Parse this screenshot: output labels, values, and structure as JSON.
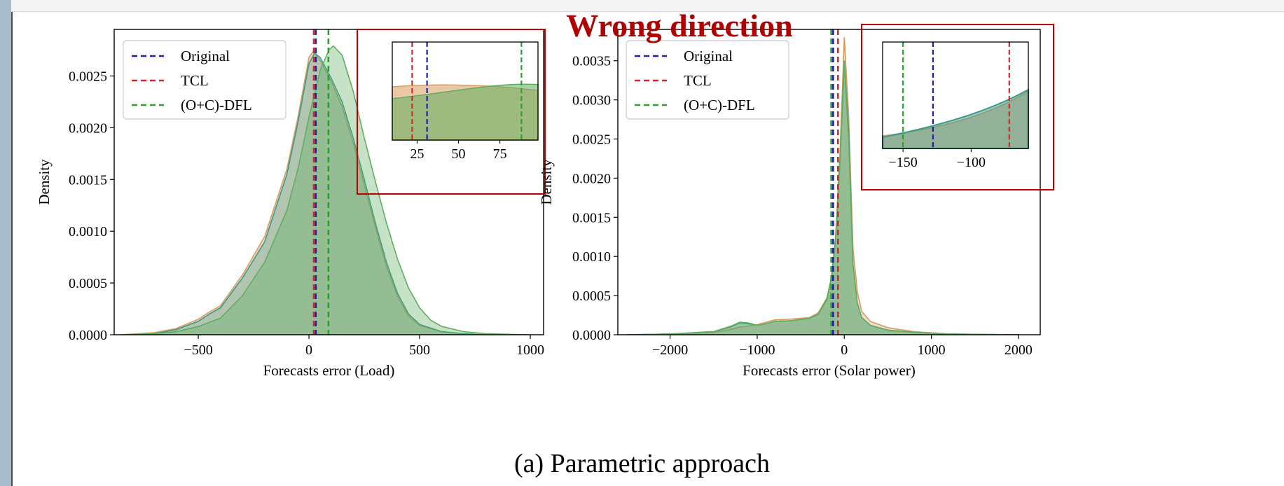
{
  "caption": "(a) Parametric approach",
  "annotation": {
    "text": "Wrong direction",
    "color": "#b00000"
  },
  "colors": {
    "original": "#1f1fa8",
    "tcl": "#d62728",
    "dfl": "#2ca02c",
    "fill_orange": "#d89b5c",
    "fill_green": "#5fae5f",
    "fill_teal": "#3a9a8a",
    "box": "#c00000"
  },
  "chart_data": [
    {
      "type": "area",
      "xlabel": "Forecasts error (Load)",
      "ylabel": "Density",
      "xlim": [
        -880,
        1060
      ],
      "ylim": [
        0,
        0.00295
      ],
      "xticks": [
        -500,
        0,
        500,
        1000
      ],
      "yticks": [
        0.0,
        0.0005,
        0.001,
        0.0015,
        0.002,
        0.0025
      ],
      "ytick_labels": [
        "0.0000",
        "0.0005",
        "0.0010",
        "0.0015",
        "0.0020",
        "0.0025"
      ],
      "xtick_labels": [
        "−500",
        "0",
        "500",
        "1000"
      ],
      "legend": {
        "placement": "top-left",
        "entries": [
          "Original",
          "TCL",
          "(O+C)-DFL"
        ]
      },
      "vlines": {
        "Original": 31,
        "TCL": 22,
        "(O+C)-DFL": 88
      },
      "series": [
        {
          "name": "Original",
          "color_key": "fill_teal",
          "x": [
            -850,
            -700,
            -600,
            -500,
            -450,
            -400,
            -300,
            -200,
            -100,
            -50,
            0,
            25,
            50,
            100,
            150,
            200,
            250,
            300,
            350,
            400,
            450,
            500,
            600,
            700,
            800
          ],
          "y": [
            0,
            1e-05,
            5e-05,
            0.00013,
            0.0002,
            0.00026,
            0.00055,
            0.0009,
            0.00155,
            0.00205,
            0.00262,
            0.00272,
            0.00268,
            0.00248,
            0.00225,
            0.0019,
            0.0015,
            0.00108,
            0.0007,
            0.0004,
            0.0002,
            0.0001,
            3e-05,
            1e-05,
            0
          ]
        },
        {
          "name": "TCL",
          "color_key": "fill_orange",
          "x": [
            -850,
            -700,
            -600,
            -500,
            -450,
            -400,
            -300,
            -200,
            -100,
            -50,
            0,
            20,
            50,
            100,
            150,
            200,
            250,
            300,
            350,
            400,
            450,
            500,
            600,
            700,
            800
          ],
          "y": [
            0,
            2e-05,
            6e-05,
            0.00015,
            0.00022,
            0.00028,
            0.00058,
            0.00095,
            0.0016,
            0.0021,
            0.00268,
            0.00274,
            0.00265,
            0.00245,
            0.0022,
            0.00185,
            0.00145,
            0.00104,
            0.00066,
            0.00037,
            0.00018,
            9e-05,
            3e-05,
            1e-05,
            0
          ]
        },
        {
          "name": "(O+C)-DFL",
          "color_key": "fill_green",
          "x": [
            -850,
            -700,
            -600,
            -500,
            -450,
            -400,
            -300,
            -200,
            -100,
            -50,
            0,
            50,
            90,
            110,
            150,
            200,
            250,
            300,
            350,
            400,
            450,
            500,
            550,
            600,
            700,
            800,
            1000
          ],
          "y": [
            0,
            1e-05,
            3e-05,
            8e-05,
            0.00012,
            0.00016,
            0.00038,
            0.0007,
            0.0012,
            0.0016,
            0.0021,
            0.00255,
            0.00275,
            0.00279,
            0.0027,
            0.00235,
            0.0019,
            0.00148,
            0.00108,
            0.00073,
            0.00045,
            0.00026,
            0.00014,
            8e-05,
            3e-05,
            1e-05,
            0
          ]
        }
      ],
      "inset": {
        "xlim": [
          10,
          98
        ],
        "xticks": [
          25,
          50,
          75
        ],
        "xtick_labels": [
          "25",
          "50",
          "75"
        ],
        "band_y_top": 0.45,
        "band_y_top_green": 0.52
      }
    },
    {
      "type": "area",
      "xlabel": "Forecasts error (Solar power)",
      "ylabel": "Density",
      "xlim": [
        -2600,
        2250
      ],
      "ylim": [
        0,
        0.0039
      ],
      "xticks": [
        -2000,
        -1000,
        0,
        1000,
        2000
      ],
      "yticks": [
        0.0,
        0.0005,
        0.001,
        0.0015,
        0.002,
        0.0025,
        0.003,
        0.0035
      ],
      "ytick_labels": [
        "0.0000",
        "0.0005",
        "0.0010",
        "0.0015",
        "0.0020",
        "0.0025",
        "0.0030",
        "0.0035"
      ],
      "xtick_labels": [
        "−2000",
        "−1000",
        "0",
        "1000",
        "2000"
      ],
      "legend": {
        "placement": "top-left",
        "entries": [
          "Original",
          "TCL",
          "(O+C)-DFL"
        ]
      },
      "vlines": {
        "Original": -128,
        "TCL": -72,
        "(O+C)-DFL": -150
      },
      "series": [
        {
          "name": "Original",
          "color_key": "fill_teal",
          "x": [
            -2500,
            -2000,
            -1500,
            -1300,
            -1200,
            -1100,
            -1000,
            -900,
            -800,
            -600,
            -400,
            -300,
            -200,
            -150,
            -100,
            -50,
            0,
            50,
            100,
            150,
            200,
            300,
            500,
            800,
            1200,
            2000
          ],
          "y": [
            0,
            1e-05,
            4e-05,
            0.0001,
            0.00015,
            0.00014,
            0.00012,
            0.00014,
            0.00017,
            0.00018,
            0.00021,
            0.00026,
            0.00045,
            0.0007,
            0.0012,
            0.0022,
            0.0035,
            0.0026,
            0.0009,
            0.0004,
            0.00022,
            0.00012,
            6e-05,
            3e-05,
            1e-05,
            0
          ]
        },
        {
          "name": "TCL",
          "color_key": "fill_orange",
          "x": [
            -2500,
            -2000,
            -1500,
            -1300,
            -1200,
            -1100,
            -1000,
            -900,
            -800,
            -600,
            -400,
            -300,
            -200,
            -150,
            -100,
            -50,
            0,
            50,
            100,
            150,
            200,
            300,
            500,
            800,
            1200,
            2000
          ],
          "y": [
            0,
            1e-05,
            3e-05,
            7e-05,
            0.0001,
            0.00011,
            0.00013,
            0.00016,
            0.00019,
            0.0002,
            0.00022,
            0.00028,
            0.00047,
            0.00072,
            0.00125,
            0.0023,
            0.0038,
            0.0028,
            0.0011,
            0.00055,
            0.0003,
            0.00017,
            9e-05,
            4e-05,
            1e-05,
            0
          ]
        },
        {
          "name": "(O+C)-DFL",
          "color_key": "fill_green",
          "x": [
            -2500,
            -2000,
            -1500,
            -1300,
            -1200,
            -1100,
            -1000,
            -900,
            -800,
            -600,
            -400,
            -300,
            -200,
            -150,
            -100,
            -50,
            0,
            50,
            100,
            150,
            200,
            300,
            500,
            800,
            1200,
            2000
          ],
          "y": [
            0,
            1e-05,
            4e-05,
            0.00011,
            0.00016,
            0.00015,
            0.00012,
            0.00014,
            0.00017,
            0.00018,
            0.00021,
            0.00026,
            0.00046,
            0.00071,
            0.00122,
            0.0022,
            0.00348,
            0.0025,
            0.0009,
            0.0004,
            0.00022,
            0.00012,
            6e-05,
            3e-05,
            1e-05,
            0
          ]
        }
      ],
      "inset": {
        "xlim": [
          -165,
          -58
        ],
        "xticks": [
          -150,
          -100
        ],
        "xtick_labels": [
          "−150",
          "−100"
        ]
      }
    }
  ]
}
